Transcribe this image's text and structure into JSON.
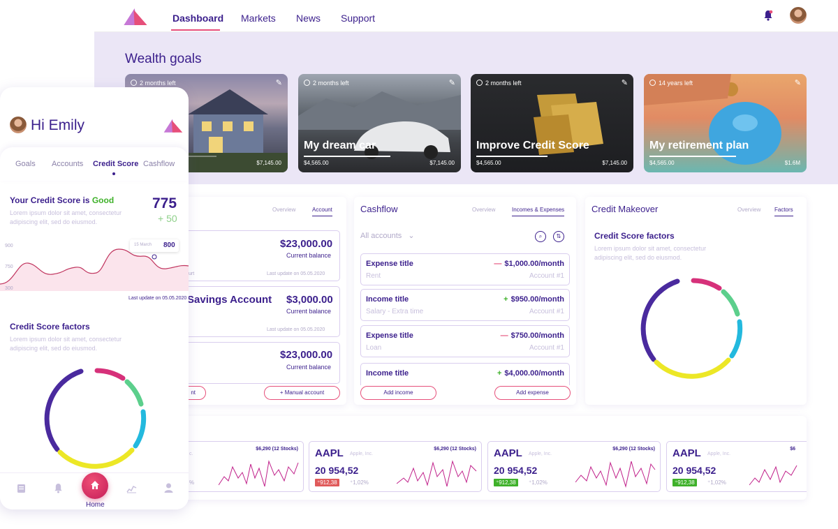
{
  "nav": {
    "links": [
      "Dashboard",
      "Markets",
      "News",
      "Support"
    ],
    "active": "Dashboard"
  },
  "colors": {
    "primary": "#3b1f8c",
    "accent": "#e64f7a",
    "good": "#3fb12a",
    "band": "#ebe6f6"
  },
  "wealth": {
    "title": "Wealth goals",
    "goals": [
      {
        "tag": "2 months left",
        "title": "",
        "left": "",
        "right": "$7,145.00",
        "progress": 0.55
      },
      {
        "tag": "2 months left",
        "title": "My dream car",
        "left": "$4,565.00",
        "right": "$7,145.00",
        "progress": 0.55
      },
      {
        "tag": "2 months left",
        "title": "Improve Credit Score",
        "left": "$4,565.00",
        "right": "$7,145.00",
        "progress": 0.32
      },
      {
        "tag": "14 years left",
        "title": "My retirement plan",
        "left": "$4,565.00",
        "right": "$1.6M",
        "progress": 0.55
      }
    ]
  },
  "accounts": {
    "tabs": [
      "Overview",
      "Account"
    ],
    "cards": [
      {
        "name": "",
        "amount": "$23,000.00",
        "label": "Current balance",
        "left_note": "urt",
        "update": "Last update on 05.05.2020"
      },
      {
        "name": "Savings Account",
        "amount": "$3,000.00",
        "label": "Current balance",
        "update": "Last update on 05.05.2020"
      },
      {
        "name": "",
        "amount": "$23,000.00",
        "label": "Current balance"
      }
    ],
    "btn_left": "nt",
    "btn_manual": "+ Manual account"
  },
  "cashflow": {
    "title": "Cashflow",
    "tabs": [
      "Overview",
      "Incomes & Expenses"
    ],
    "filter": "All accounts",
    "items": [
      {
        "title": "Expense title",
        "sign": "—",
        "amount": "$1,000.00/month",
        "sub": "Rent",
        "account": "Account #1",
        "type": "expense"
      },
      {
        "title": "Income title",
        "sign": "+",
        "amount": "$950.00/month",
        "sub": "Salary - Extra time",
        "account": "Account #1",
        "type": "income"
      },
      {
        "title": "Expense title",
        "sign": "—",
        "amount": "$750.00/month",
        "sub": "Loan",
        "account": "Account #1",
        "type": "expense"
      },
      {
        "title": "Income title",
        "sign": "+",
        "amount": "$4,000.00/month",
        "sub": "",
        "account": "",
        "type": "income"
      }
    ],
    "add_income": "Add income",
    "add_expense": "Add expense"
  },
  "makeover": {
    "title": "Credit Makeover",
    "tabs": [
      "Overview",
      "Factors"
    ],
    "factors_title": "Credit Score factors",
    "factors_text_1": "Lorem ipsum dolor sit amet, consectetur",
    "factors_text_2": "adipiscing elit, sed do eiusmod."
  },
  "stocks": [
    {
      "ticker": "",
      "company": "c.",
      "holding": "$6,290 (12 Stocks)",
      "price": "",
      "change": "",
      "pct": "%",
      "dir": "down"
    },
    {
      "ticker": "AAPL",
      "company": "Apple, Inc.",
      "holding": "$6,290 (12 Stocks)",
      "price": "20 954,52",
      "change": "⁺912,38",
      "pct": "⁺1,02%",
      "dir": "down"
    },
    {
      "ticker": "AAPL",
      "company": "Apple, Inc.",
      "holding": "$6,290 (12 Stocks)",
      "price": "20 954,52",
      "change": "⁺912,38",
      "pct": "⁺1,02%",
      "dir": "up"
    },
    {
      "ticker": "AAPL",
      "company": "Apple, Inc.",
      "holding": "$6",
      "price": "20 954,52",
      "change": "⁺912,38",
      "pct": "⁺1,02%",
      "dir": "up"
    }
  ],
  "mobile": {
    "greeting": "Hi Emily",
    "tabs": [
      "Goals",
      "Accounts",
      "Credit Score",
      "Cashflow"
    ],
    "active_tab": "Credit Score",
    "score_label": "Your Credit Score is",
    "score_word": "Good",
    "score": "775",
    "score_delta": "+ 50",
    "lorem_1": "Lorem ipsum dolor sit amet, consectetur",
    "lorem_2": "adipiscing elit, sed do eiusmod.",
    "y_ticks": [
      "900",
      "750",
      "300"
    ],
    "tooltip_date": "15 March",
    "tooltip_value": "800",
    "last_update": "Last update on 05.05.2020",
    "factors_title": "Credit Score factors",
    "home_label": "Home"
  }
}
